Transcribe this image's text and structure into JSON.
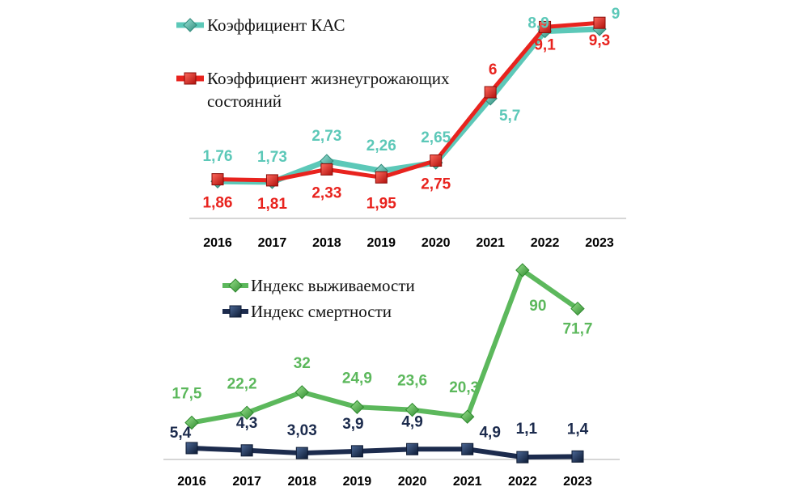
{
  "chart_data": [
    {
      "type": "line",
      "categories": [
        "2016",
        "2017",
        "2018",
        "2019",
        "2020",
        "2021",
        "2022",
        "2023"
      ],
      "ylim": [
        0,
        10
      ],
      "grid": false,
      "legend": "top-left",
      "series": [
        {
          "name": "Коэффициент КАС",
          "values": [
            1.76,
            1.73,
            2.73,
            2.26,
            2.65,
            5.7,
            8.9,
            9
          ],
          "labels": [
            "1,76",
            "1,73",
            "2,73",
            "2,26",
            "2,65",
            "5,7",
            "8,9",
            "9"
          ],
          "color": "#5cc8b8",
          "marker": "diamond"
        },
        {
          "name": "Коэффициент жизнеугрожающих состояний",
          "values": [
            1.86,
            1.81,
            2.33,
            1.95,
            2.75,
            6,
            9.1,
            9.3
          ],
          "labels": [
            "1,86",
            "1,81",
            "2,33",
            "1,95",
            "2,75",
            "6",
            "9,1",
            "9,3"
          ],
          "color": "#e8231e",
          "marker": "square"
        }
      ]
    },
    {
      "type": "line",
      "categories": [
        "2016",
        "2017",
        "2018",
        "2019",
        "2020",
        "2021",
        "2022",
        "2023"
      ],
      "ylim": [
        0,
        100
      ],
      "grid": false,
      "legend": "top-left",
      "series": [
        {
          "name": "Индекс выживаемости",
          "values": [
            17.5,
            22.2,
            32,
            24.9,
            23.6,
            20.3,
            90,
            71.7
          ],
          "labels": [
            "17,5",
            "22,2",
            "32",
            "24,9",
            "23,6",
            "20,3",
            "90",
            "71,7"
          ],
          "color": "#5cb85c",
          "marker": "diamond"
        },
        {
          "name": "Индекс смертности",
          "values": [
            5.4,
            4.3,
            3.03,
            3.9,
            4.9,
            4.9,
            1.1,
            1.4
          ],
          "labels": [
            "5,4",
            "4,3",
            "3,03",
            "3,9",
            "4,9",
            "4,9",
            "1,1",
            "1,4"
          ],
          "color": "#1c2b4d",
          "marker": "square"
        }
      ]
    }
  ]
}
